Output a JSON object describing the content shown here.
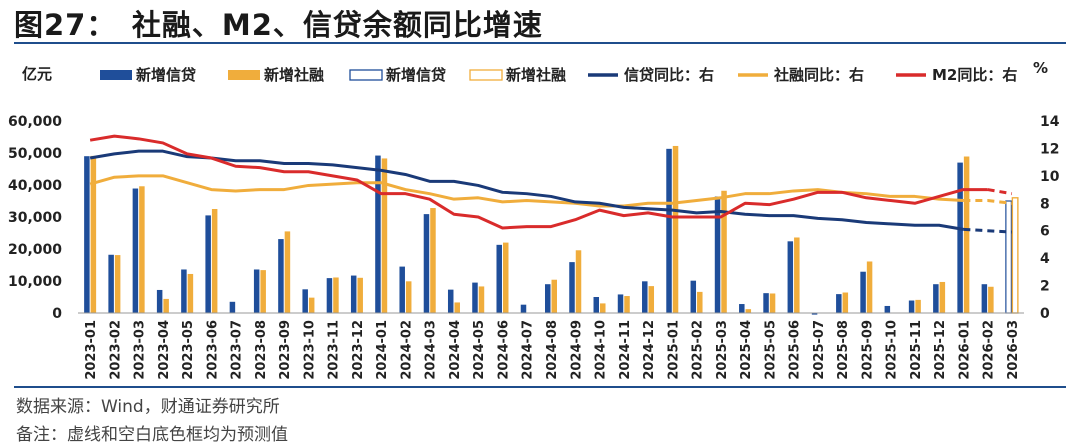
{
  "title": "图27：　社融、M2、信贷余额同比增速",
  "source": "数据来源：Wind，财通证券研究所",
  "remark": "备注：虚线和空白底色框均为预测值",
  "chart_data": {
    "type": "bar+line",
    "left_unit": "亿元",
    "right_unit": "%",
    "ylim_left": [
      0,
      60000
    ],
    "ylim_right": [
      0,
      14
    ],
    "yticks_left": [
      "0",
      "10,000",
      "20,000",
      "30,000",
      "40,000",
      "50,000",
      "60,000"
    ],
    "yticks_right": [
      "0",
      "2",
      "4",
      "6",
      "8",
      "10",
      "12",
      "14"
    ],
    "categories": [
      "2023-01",
      "2023-02",
      "2023-03",
      "2023-04",
      "2023-05",
      "2023-06",
      "2023-07",
      "2023-08",
      "2023-09",
      "2023-10",
      "2023-11",
      "2023-12",
      "2024-01",
      "2024-02",
      "2024-03",
      "2024-04",
      "2024-05",
      "2024-06",
      "2024-07",
      "2024-08",
      "2024-09",
      "2024-10",
      "2024-11",
      "2024-12",
      "2025-01",
      "2025-02",
      "2025-03",
      "2025-04",
      "2025-05",
      "2025-06",
      "2025-07",
      "2025-08",
      "2025-09",
      "2025-10",
      "2025-11",
      "2025-12",
      "2026-01",
      "2026-02",
      "2026-03"
    ],
    "legend": [
      {
        "label": "新增信贷",
        "kind": "bar",
        "color": "#1f4e9a"
      },
      {
        "label": "新增社融",
        "kind": "bar",
        "color": "#f0ad3c"
      },
      {
        "label": "新增信贷",
        "kind": "bar-outline",
        "color": "#1f4e9a"
      },
      {
        "label": "新增社融",
        "kind": "bar-outline",
        "color": "#f0ad3c"
      },
      {
        "label": "信贷同比：右",
        "kind": "line",
        "color": "#1a3a78"
      },
      {
        "label": "社融同比：右",
        "kind": "line",
        "color": "#f0ad3c"
      },
      {
        "label": "M2同比：右",
        "kind": "line",
        "color": "#d92b2b"
      }
    ],
    "credit_bars": [
      49000,
      18200,
      38900,
      7200,
      13600,
      30500,
      3500,
      13600,
      23100,
      7400,
      10900,
      11700,
      49200,
      14500,
      30900,
      7300,
      9500,
      21300,
      2600,
      9000,
      15900,
      5000,
      5800,
      9900,
      51300,
      10100,
      36400,
      2800,
      6200,
      22400,
      -500,
      5900,
      12900,
      2200,
      3900,
      9000,
      47000,
      9000,
      35000
    ],
    "tsf_bars": [
      49100,
      18100,
      39600,
      4400,
      12200,
      32500,
      0,
      13400,
      25500,
      4800,
      11100,
      11000,
      48300,
      9900,
      32800,
      3300,
      8300,
      22000,
      0,
      10400,
      19600,
      3000,
      5300,
      8400,
      52200,
      6600,
      38200,
      1200,
      6100,
      23600,
      0,
      6400,
      16100,
      0,
      4100,
      9700,
      48900,
      8200,
      36000
    ],
    "forecast_from": 38,
    "credit_yoy": [
      11.3,
      11.6,
      11.8,
      11.8,
      11.4,
      11.3,
      11.1,
      11.1,
      10.9,
      10.9,
      10.8,
      10.6,
      10.4,
      10.1,
      9.6,
      9.6,
      9.3,
      8.8,
      8.7,
      8.5,
      8.1,
      8.0,
      7.7,
      7.6,
      7.5,
      7.3,
      7.4,
      7.2,
      7.1,
      7.1,
      6.9,
      6.8,
      6.6,
      6.5,
      6.4,
      6.4,
      6.1,
      6.0,
      5.9
    ],
    "tsf_yoy": [
      9.4,
      9.9,
      10.0,
      10.0,
      9.5,
      9.0,
      8.9,
      9.0,
      9.0,
      9.3,
      9.4,
      9.5,
      9.5,
      9.0,
      8.7,
      8.3,
      8.4,
      8.1,
      8.2,
      8.1,
      8.0,
      7.8,
      7.8,
      8.0,
      8.0,
      8.2,
      8.4,
      8.7,
      8.7,
      8.9,
      9.0,
      8.8,
      8.7,
      8.5,
      8.5,
      8.3,
      8.2,
      8.2,
      8.0
    ],
    "m2_yoy": [
      12.6,
      12.9,
      12.7,
      12.4,
      11.6,
      11.3,
      10.7,
      10.6,
      10.3,
      10.3,
      10.0,
      9.7,
      8.7,
      8.7,
      8.3,
      7.2,
      7.0,
      6.2,
      6.3,
      6.3,
      6.8,
      7.5,
      7.1,
      7.3,
      7.0,
      7.0,
      7.0,
      8.0,
      7.9,
      8.3,
      8.8,
      8.8,
      8.4,
      8.2,
      8.0,
      8.5,
      9.0,
      9.0,
      8.7
    ],
    "credit_yoy_dashed_from": 36,
    "tsf_yoy_dashed_from": 36,
    "m2_yoy_dashed_from": 37
  }
}
